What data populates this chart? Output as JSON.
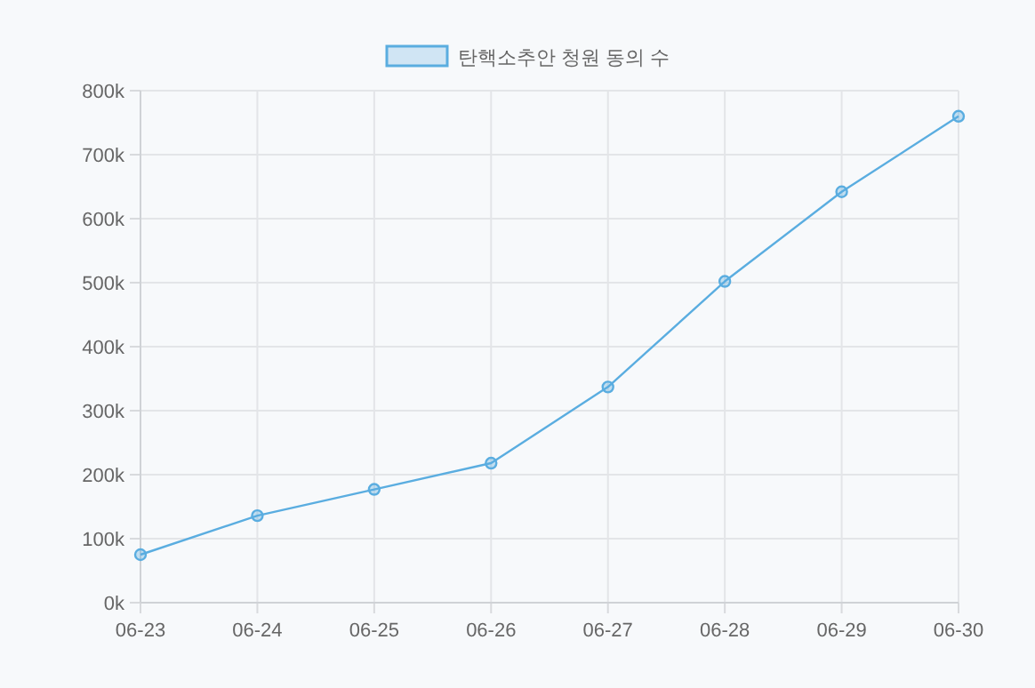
{
  "chart_data": {
    "type": "line",
    "categories": [
      "06-23",
      "06-24",
      "06-25",
      "06-26",
      "06-27",
      "06-28",
      "06-29",
      "06-30"
    ],
    "series": [
      {
        "name": "탄핵소추안 청원 동의 수",
        "color": "#5aade0",
        "values": [
          75000,
          136000,
          177000,
          218000,
          337000,
          502000,
          642000,
          760000
        ]
      }
    ],
    "ylim": [
      0,
      800000
    ],
    "yticks": [
      {
        "value": 0,
        "label": "0k"
      },
      {
        "value": 100000,
        "label": "100k"
      },
      {
        "value": 200000,
        "label": "200k"
      },
      {
        "value": 300000,
        "label": "300k"
      },
      {
        "value": 400000,
        "label": "400k"
      },
      {
        "value": 500000,
        "label": "500k"
      },
      {
        "value": 600000,
        "label": "600k"
      },
      {
        "value": 700000,
        "label": "700k"
      },
      {
        "value": 800000,
        "label": "800k"
      }
    ],
    "grid": true,
    "legend": "top",
    "marker": "circle",
    "line_style": "solid"
  }
}
